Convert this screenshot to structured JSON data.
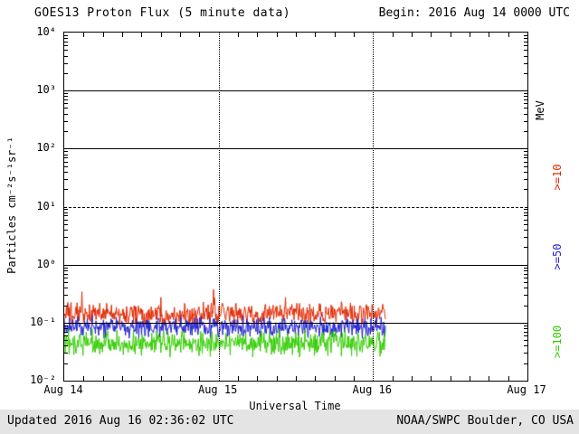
{
  "header": {
    "title": "GOES13 Proton Flux (5 minute data)",
    "begin_label": "Begin: 2016 Aug 14 0000 UTC"
  },
  "footer": {
    "updated": "Updated 2016 Aug 16 02:36:02 UTC",
    "source": "NOAA/SWPC Boulder, CO USA"
  },
  "chart_data": {
    "type": "line",
    "title": "GOES13 Proton Flux (5 minute data)",
    "begin": "2016 Aug 14 0000 UTC",
    "updated": "2016 Aug 16 02:36:02 UTC",
    "xlabel": "Universal Time",
    "ylabel": "Particles cm⁻²s⁻¹sr⁻¹",
    "right_axis_label": "MeV",
    "x_ticks": [
      "Aug 14",
      "Aug 15",
      "Aug 16",
      "Aug 17"
    ],
    "y_ticks": [
      "10⁴",
      "10³",
      "10²",
      "10¹",
      "10⁰",
      "10⁻¹",
      "10⁻²"
    ],
    "y_tick_exponents": [
      4,
      3,
      2,
      1,
      0,
      -1,
      -2
    ],
    "y_scale": "log10",
    "ylim": [
      0.01,
      10000
    ],
    "x_span_days": 3,
    "grid_solid_log10": [
      3,
      2,
      0,
      -1
    ],
    "dashed_threshold_log10": 1,
    "dotted_day_lines": [
      "Aug 15",
      "Aug 16"
    ],
    "series": [
      {
        "name": ">=10",
        "color": "#e02800",
        "center_log10": -0.85,
        "noise_log10": 0.22,
        "spike_log10": 0.3,
        "end_day": 2.08,
        "approx_flux_range": [
          0.07,
          0.4
        ]
      },
      {
        "name": ">=50",
        "color": "#2222cc",
        "center_log10": -1.08,
        "noise_log10": 0.2,
        "spike_log10": 0.15,
        "end_day": 2.08,
        "approx_flux_range": [
          0.04,
          0.16
        ]
      },
      {
        "name": ">=100",
        "color": "#33cc00",
        "center_log10": -1.35,
        "noise_log10": 0.26,
        "spike_log10": 0.1,
        "end_day": 2.08,
        "approx_flux_range": [
          0.02,
          0.09
        ]
      }
    ]
  }
}
